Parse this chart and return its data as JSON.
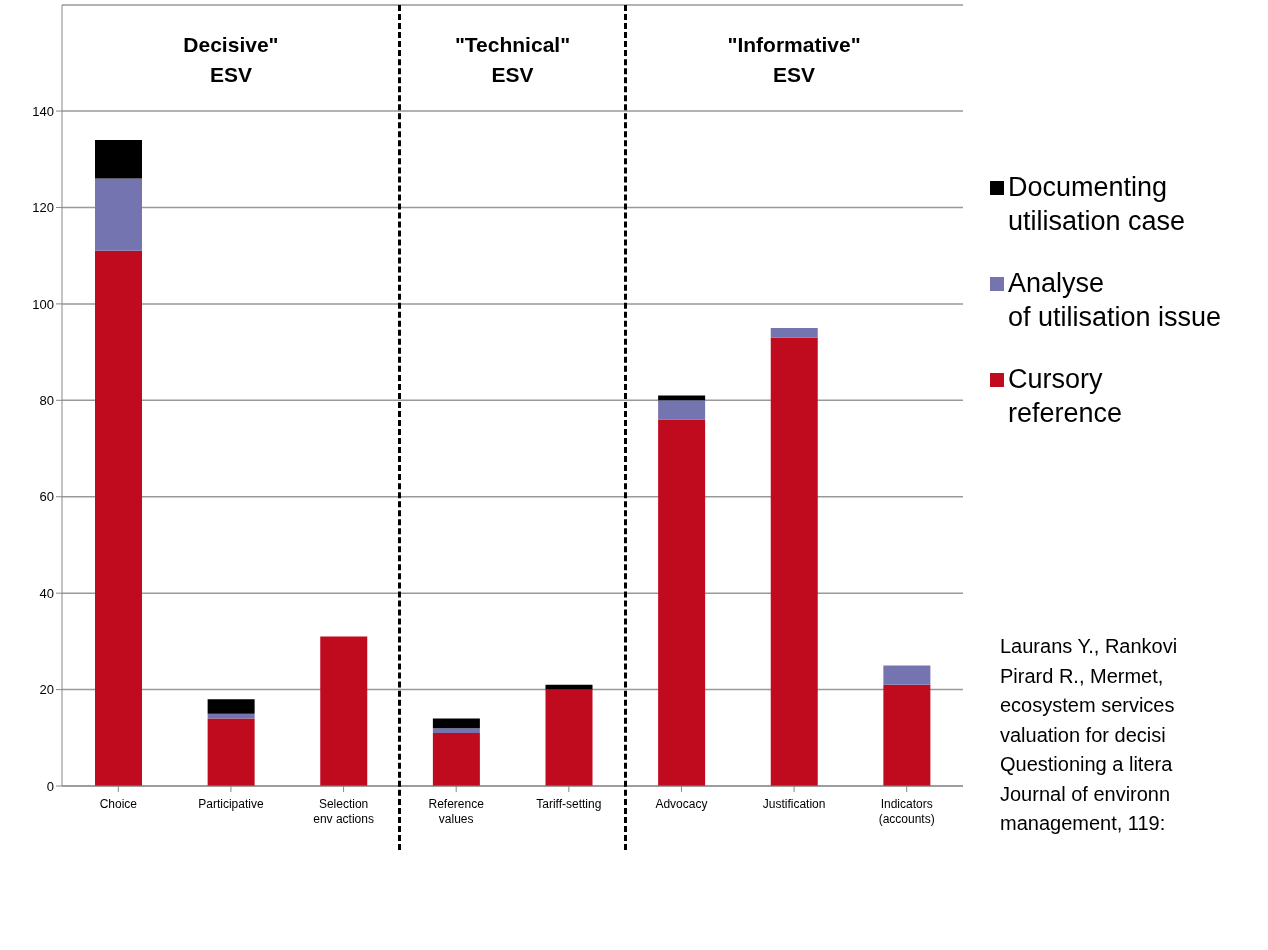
{
  "chart_data": {
    "type": "bar",
    "stacked": true,
    "categories": [
      "Choice",
      "Participative",
      "Selection\nenv actions",
      "Reference\nvalues",
      "Tariff-setting",
      "Advocacy",
      "Justification",
      "Indicators\n(accounts)"
    ],
    "series": [
      {
        "name": "Cursory reference",
        "color": "#c00a1e",
        "values": [
          111,
          14,
          31,
          11,
          20,
          76,
          93,
          21
        ]
      },
      {
        "name": "Analyse of utilisation issue",
        "color": "#7474b0",
        "values": [
          15,
          1,
          0,
          1,
          0,
          4,
          2,
          4
        ]
      },
      {
        "name": "Documenting utilisation case",
        "color": "#000000",
        "values": [
          8,
          3,
          0,
          2,
          1,
          1,
          0,
          0
        ]
      }
    ],
    "ylim": [
      0,
      162
    ],
    "yticks": [
      0,
      20,
      40,
      60,
      80,
      100,
      120,
      140
    ],
    "grid": "y",
    "legend": "right",
    "annotations": [
      "Decisive\" ESV",
      "\"Technical\" ESV",
      "\"Informative\" ESV",
      "Laurans Y., Rankovi\nPirard R., Mermet,\necosystem services\nvaluation for decisi\nQuestioning a litera\nJournal of environn\nmanagement, 119:"
    ]
  }
}
